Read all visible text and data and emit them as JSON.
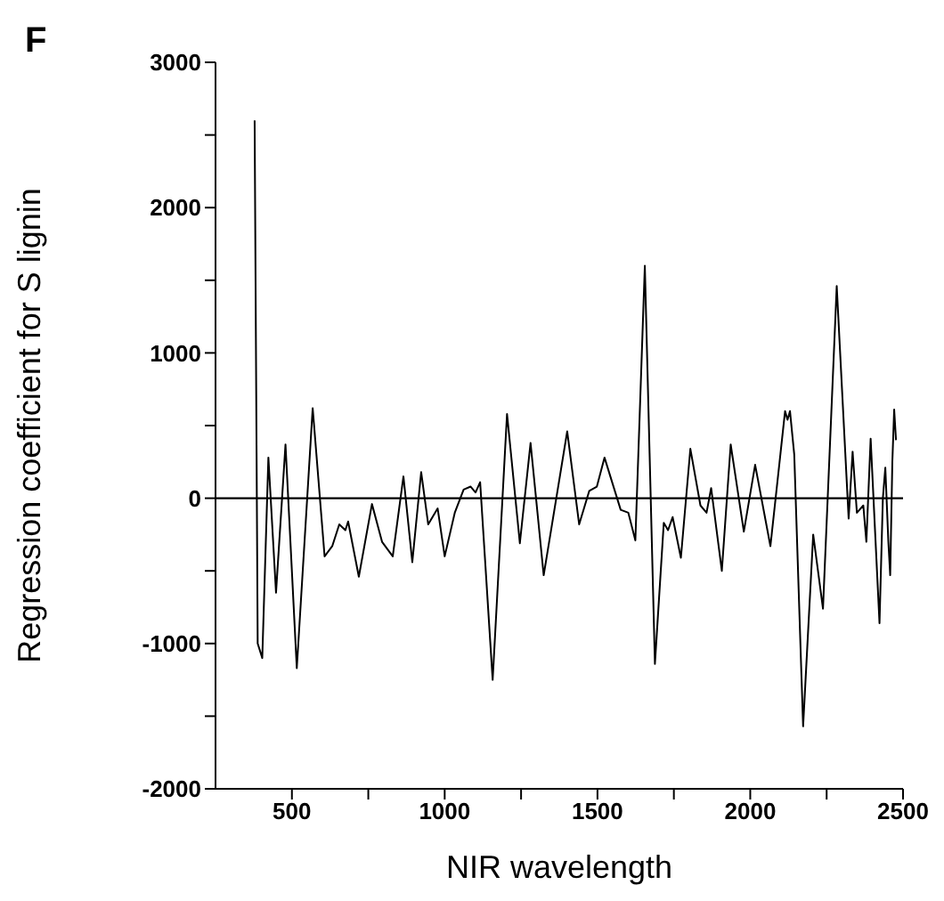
{
  "chart_data": {
    "type": "line",
    "title": "F",
    "xlabel": "NIR wavelength",
    "ylabel": "Regression coefficient for S lignin",
    "xlim": [
      250,
      2500
    ],
    "xticks": [
      500,
      {
        "value": 750,
        "label": null
      },
      1000,
      {
        "value": 1250,
        "label": null
      },
      1500,
      {
        "value": 1750,
        "label": null
      },
      2000,
      {
        "value": 2250,
        "label": null
      },
      2500
    ],
    "ylim": [
      -2000,
      3000
    ],
    "yticks": [
      -2000,
      {
        "value": -1500,
        "label": null
      },
      -1000,
      {
        "value": -500,
        "label": null
      },
      0,
      {
        "value": 500,
        "label": null
      },
      1000,
      {
        "value": 1500,
        "label": null
      },
      2000,
      {
        "value": 2500,
        "label": null
      },
      3000
    ],
    "ref_lines": [
      {
        "axis": "y",
        "value": 0,
        "color": "#000000"
      }
    ],
    "marker": "none",
    "line_style": "solid",
    "series": [
      {
        "color": "#000000",
        "x": [
          378,
          388,
          403,
          423,
          448,
          479,
          516,
          568,
          607,
          632,
          655,
          675,
          684,
          719,
          762,
          795,
          830,
          865,
          894,
          923,
          946,
          977,
          1000,
          1033,
          1062,
          1085,
          1101,
          1116,
          1157,
          1204,
          1246,
          1281,
          1324,
          1401,
          1440,
          1473,
          1498,
          1523,
          1576,
          1601,
          1624,
          1655,
          1688,
          1717,
          1731,
          1746,
          1773,
          1804,
          1837,
          1857,
          1872,
          1907,
          1936,
          1979,
          2016,
          2066,
          2114,
          2122,
          2130,
          2144,
          2173,
          2206,
          2238,
          2283,
          2322,
          2335,
          2349,
          2370,
          2380,
          2394,
          2409,
          2423,
          2434,
          2442,
          2452,
          2458,
          2465,
          2471,
          2477
        ],
        "values": [
          2600,
          -1000,
          -1100,
          280,
          -650,
          370,
          -1170,
          620,
          -400,
          -330,
          -180,
          -220,
          -160,
          -540,
          -40,
          -300,
          -400,
          150,
          -440,
          180,
          -180,
          -70,
          -400,
          -100,
          60,
          80,
          40,
          110,
          -1250,
          580,
          -310,
          380,
          -530,
          460,
          -180,
          50,
          80,
          280,
          -80,
          -100,
          -290,
          1600,
          -1140,
          -170,
          -220,
          -130,
          -410,
          340,
          -50,
          -100,
          70,
          -500,
          370,
          -230,
          230,
          -330,
          600,
          540,
          600,
          300,
          -1570,
          -250,
          -760,
          1460,
          -140,
          320,
          -100,
          -50,
          -300,
          410,
          -250,
          -860,
          0,
          210,
          -300,
          -530,
          250,
          610,
          400
        ]
      }
    ]
  }
}
